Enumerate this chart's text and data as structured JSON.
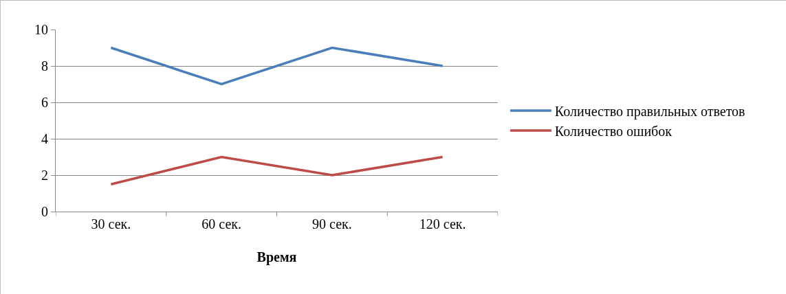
{
  "chart_data": {
    "type": "line",
    "xlabel": "Время",
    "categories": [
      "30 сек.",
      "60 сек.",
      "90 сек.",
      "120 сек."
    ],
    "series": [
      {
        "name": "Количество правильных ответов",
        "color": "#4a7ebb",
        "values": [
          9,
          7,
          9,
          8
        ]
      },
      {
        "name": "Количество ошибок",
        "color": "#be4b48",
        "values": [
          1.5,
          3,
          2,
          3
        ]
      }
    ],
    "ylim": [
      0,
      10
    ],
    "yticks": [
      0,
      2,
      4,
      6,
      8,
      10
    ],
    "grid": "y",
    "legend": "right",
    "marker": "none",
    "line_style": "solid"
  }
}
